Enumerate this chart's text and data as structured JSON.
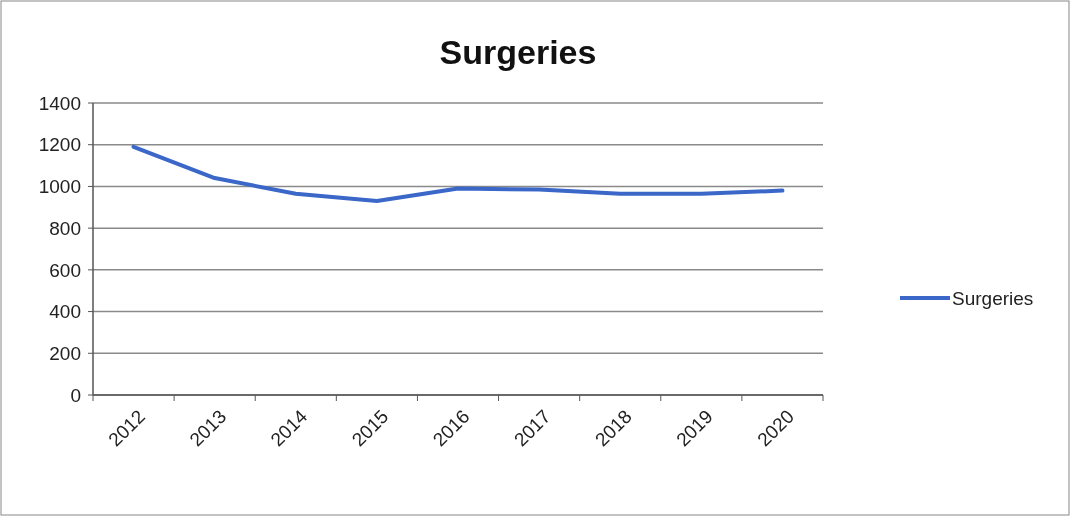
{
  "chart_data": {
    "type": "line",
    "title": "Surgeries",
    "categories": [
      "2012",
      "2013",
      "2014",
      "2015",
      "2016",
      "2017",
      "2018",
      "2019",
      "2020"
    ],
    "series": [
      {
        "name": "Surgeries",
        "color": "#3a67c8",
        "values": [
          1190,
          1040,
          965,
          930,
          990,
          985,
          965,
          965,
          980
        ]
      }
    ],
    "ylim": [
      0,
      1400
    ],
    "yticks": [
      0,
      200,
      400,
      600,
      800,
      1000,
      1200,
      1400
    ],
    "grid": "y",
    "legend": "right",
    "marker": "none",
    "line_style": "solid"
  }
}
